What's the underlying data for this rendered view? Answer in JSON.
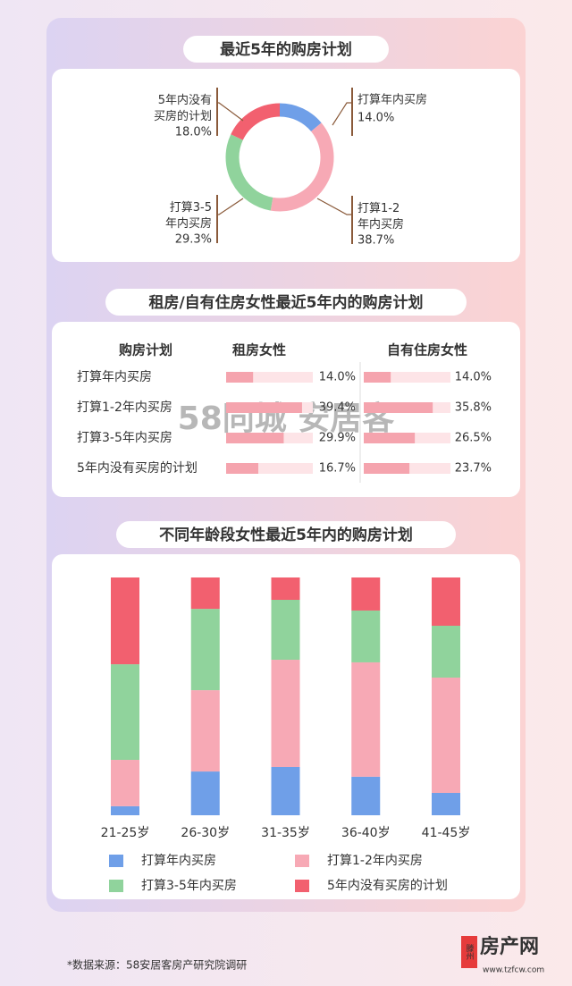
{
  "chart_data": [
    {
      "type": "pie",
      "title": "最近5年的购房计划",
      "categories": [
        "打算年内买房",
        "打算1-2年内买房",
        "打算3-5年内买房",
        "5年内没有买房的计划"
      ],
      "values": [
        14.0,
        38.7,
        29.3,
        18.0
      ],
      "value_labels": [
        "14.0%",
        "38.7%",
        "29.3%",
        "18.0%"
      ],
      "colors": [
        "#6f9fe8",
        "#f7a9b5",
        "#90d39c",
        "#f2606f"
      ]
    },
    {
      "type": "hbar",
      "title": "租房/自有住房女性最近5年内的购房计划",
      "category_label": "购房计划",
      "categories": [
        "打算年内买房",
        "打算1-2年内买房",
        "打算3-5年内买房",
        "5年内没有买房的计划"
      ],
      "xlim": [
        0,
        45
      ],
      "series": [
        {
          "name": "租房女性",
          "color": "#f5a4ae",
          "values": [
            14.0,
            39.4,
            29.9,
            16.7
          ],
          "value_labels": [
            "14.0%",
            "39.4%",
            "29.9%",
            "16.7%"
          ]
        },
        {
          "name": "自有住房女性",
          "color": "#f5a4ae",
          "values": [
            14.0,
            35.8,
            26.5,
            23.7
          ],
          "value_labels": [
            "14.0%",
            "35.8%",
            "26.5%",
            "23.7%"
          ]
        }
      ]
    },
    {
      "type": "stacked_bar",
      "title": "不同年龄段女性最近5年内的购房计划",
      "categories": [
        "21-25岁",
        "26-30岁",
        "31-35岁",
        "36-40岁",
        "41-45岁"
      ],
      "ylim": [
        0,
        100
      ],
      "series": [
        {
          "name": "打算年内买房",
          "color": "#6f9fe8",
          "values": [
            3.8,
            18.4,
            20.3,
            16.2,
            9.4
          ]
        },
        {
          "name": "打算1-2年内买房",
          "color": "#f7a9b5",
          "values": [
            19.5,
            34.2,
            45.1,
            48.1,
            48.5
          ]
        },
        {
          "name": "打算3-5年内买房",
          "color": "#90d39c",
          "values": [
            40.2,
            34.2,
            25.2,
            21.8,
            21.8
          ]
        },
        {
          "name": "5年内没有买房的计划",
          "color": "#f2606f",
          "values": [
            36.5,
            13.2,
            9.4,
            13.9,
            20.3
          ]
        }
      ]
    }
  ],
  "watermark": "58同城 安居客",
  "footer": {
    "source": "*数据来源：58安居客房产研究院调研",
    "logo_region": "滕州",
    "logo_name": "房产网",
    "logo_url": "www.tzfcw.com"
  }
}
